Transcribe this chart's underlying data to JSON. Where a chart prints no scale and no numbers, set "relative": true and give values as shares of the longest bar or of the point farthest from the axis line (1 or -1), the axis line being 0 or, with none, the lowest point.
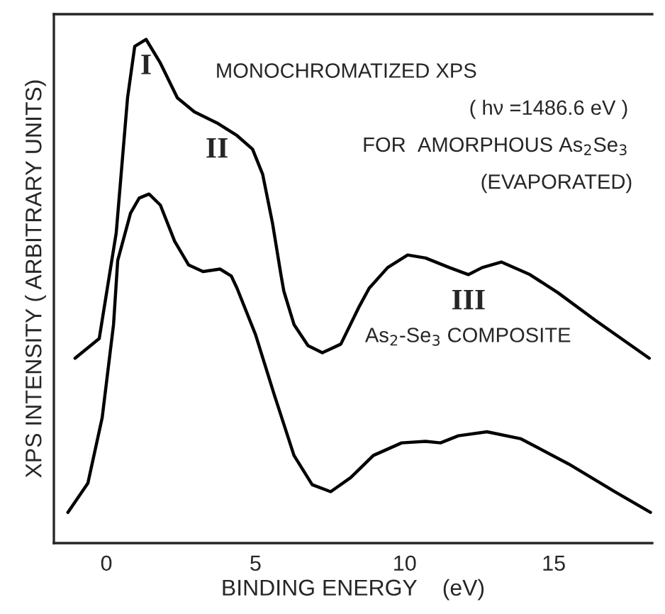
{
  "chart_data": {
    "type": "line",
    "relative": true,
    "xlabel": "BINDING ENERGY    (eV)",
    "ylabel": "XPS INTENSITY ( ARBITRARY UNITS)",
    "xlim": [
      -1.76,
      18.3
    ],
    "xticks": [
      0,
      5,
      10,
      15
    ],
    "grid": false,
    "legend": false,
    "marker": "none",
    "line_style": "solid",
    "series": [
      {
        "color": "#000000",
        "x": [
          -1.05,
          -0.24,
          0.33,
          0.71,
          0.95,
          1.33,
          1.81,
          2.38,
          2.95,
          3.71,
          4.38,
          4.9,
          5.24,
          5.57,
          5.86,
          5.95,
          6.29,
          6.76,
          7.24,
          7.86,
          8.48,
          8.81,
          9.43,
          10.1,
          10.7,
          11.5,
          12.14,
          12.6,
          13.24,
          14.2,
          15.14,
          16.4,
          18.2
        ],
        "values": [
          0.367,
          0.406,
          0.616,
          0.884,
          0.986,
          1.0,
          0.953,
          0.884,
          0.856,
          0.834,
          0.809,
          0.782,
          0.732,
          0.635,
          0.53,
          0.5,
          0.434,
          0.392,
          0.378,
          0.395,
          0.47,
          0.506,
          0.547,
          0.572,
          0.566,
          0.547,
          0.533,
          0.547,
          0.558,
          0.533,
          0.497,
          0.442,
          0.367
        ]
      },
      {
        "color": "#000000",
        "x": [
          -1.29,
          -0.62,
          -0.14,
          0.24,
          0.38,
          0.81,
          1.1,
          1.43,
          1.81,
          2.29,
          2.76,
          3.24,
          3.81,
          4.19,
          4.38,
          5.0,
          5.62,
          6.29,
          6.9,
          7.52,
          8.19,
          8.95,
          9.9,
          10.7,
          11.2,
          11.8,
          12.76,
          13.9,
          15.5,
          17.05,
          18.24
        ],
        "values": [
          0.061,
          0.119,
          0.249,
          0.434,
          0.561,
          0.655,
          0.685,
          0.693,
          0.671,
          0.599,
          0.552,
          0.539,
          0.544,
          0.53,
          0.506,
          0.414,
          0.296,
          0.174,
          0.116,
          0.102,
          0.13,
          0.174,
          0.199,
          0.202,
          0.199,
          0.213,
          0.221,
          0.207,
          0.157,
          0.102,
          0.061
        ]
      }
    ],
    "annotations": [
      {
        "text": "I",
        "x": 1.33,
        "y": 1.0
      },
      {
        "text": "II",
        "x": 3.71,
        "y": 0.834
      },
      {
        "text": "III",
        "x": 12.14,
        "y": 0.533
      },
      "MONOCHROMATIZED XPS",
      "( hν =1486.6 eV )",
      "FOR  AMORPHOUS As$_{2}$Se$_{3}$",
      "(EVAPORATED)",
      "As$_{2}$-Se$_{3}$ COMPOSITE"
    ]
  }
}
